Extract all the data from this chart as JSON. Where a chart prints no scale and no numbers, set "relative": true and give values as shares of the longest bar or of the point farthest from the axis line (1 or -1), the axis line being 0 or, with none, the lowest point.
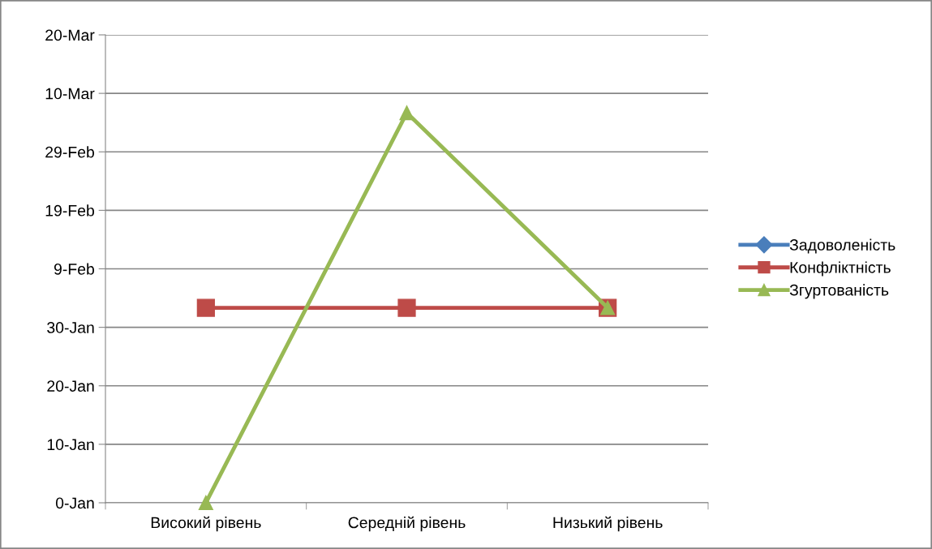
{
  "chart_data": {
    "type": "line",
    "categories": [
      "Високий рівень",
      "Середній рівень",
      "Низький рівень"
    ],
    "series": [
      {
        "name": "Задоволеність",
        "color": "#4a7ebb",
        "marker": "diamond",
        "values": [
          null,
          null,
          null
        ]
      },
      {
        "name": "Конфліктність",
        "color": "#be4b48",
        "marker": "square",
        "values": [
          0.5,
          0.5,
          0.5
        ]
      },
      {
        "name": "Згуртованість",
        "color": "#98b954",
        "marker": "triangle",
        "values": [
          0,
          1,
          0.5
        ]
      }
    ],
    "relative": true,
    "annotations": [
      "0-Jan",
      "10-Jan",
      "20-Jan",
      "30-Jan",
      "9-Feb",
      "19-Feb",
      "29-Feb",
      "10-Mar",
      "20-Mar"
    ],
    "grid": "y",
    "legend": "right",
    "line_style": "solid"
  }
}
